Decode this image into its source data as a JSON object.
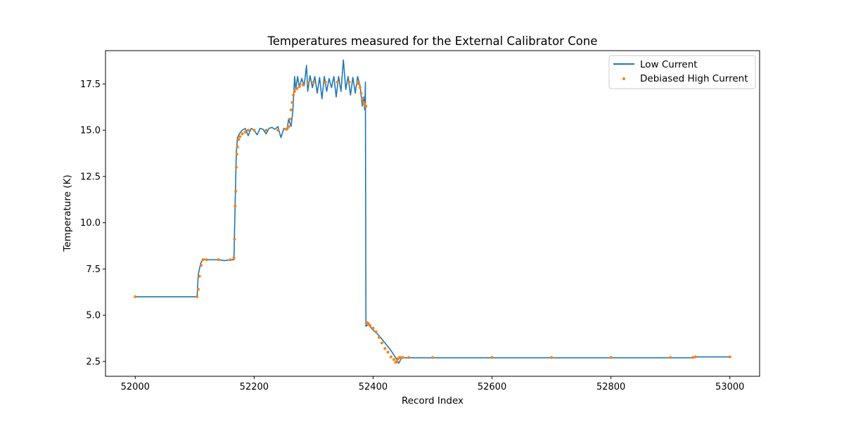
{
  "chart_data": {
    "type": "line",
    "title": "Temperatures measured for the External Calibrator Cone",
    "xlabel": "Record Index",
    "ylabel": "Temperature (K)",
    "xlim": [
      51950,
      53050
    ],
    "ylim": [
      1.7,
      19.3
    ],
    "x_ticks": [
      52000,
      52200,
      52400,
      52600,
      52800,
      53000
    ],
    "y_ticks": [
      2.5,
      5.0,
      7.5,
      10.0,
      12.5,
      15.0,
      17.5
    ],
    "x_tick_labels": [
      "52000",
      "52200",
      "52400",
      "52600",
      "52800",
      "53000"
    ],
    "y_tick_labels": [
      "2.5",
      "5.0",
      "7.5",
      "10.0",
      "12.5",
      "15.0",
      "17.5"
    ],
    "grid": false,
    "legend_position": "top-right",
    "colors": {
      "low_current": "#1f77b4",
      "high_current": "#ff7f0e"
    },
    "series": [
      {
        "name": "Low Current",
        "kind": "line",
        "x": [
          52000,
          52104,
          52106,
          52110,
          52114,
          52120,
          52130,
          52140,
          52150,
          52160,
          52166,
          52168,
          52170,
          52172,
          52175,
          52180,
          52185,
          52190,
          52195,
          52200,
          52205,
          52210,
          52215,
          52220,
          52225,
          52230,
          52235,
          52240,
          52245,
          52250,
          52255,
          52258,
          52262,
          52265,
          52268,
          52270,
          52273,
          52276,
          52280,
          52284,
          52288,
          52290,
          52294,
          52298,
          52302,
          52306,
          52310,
          52314,
          52318,
          52322,
          52326,
          52330,
          52334,
          52338,
          52342,
          52346,
          52350,
          52354,
          52358,
          52362,
          52366,
          52370,
          52374,
          52378,
          52382,
          52384,
          52386,
          52387,
          52388,
          52392,
          52396,
          52400,
          52410,
          52420,
          52430,
          52436,
          52440,
          52443,
          52448,
          52460,
          52500,
          52600,
          52700,
          52800,
          52900,
          52938,
          52942,
          53000
        ],
        "y": [
          6.0,
          6.0,
          7.2,
          7.8,
          8.05,
          8.0,
          8.0,
          8.0,
          7.95,
          8.0,
          8.0,
          11.0,
          13.8,
          14.6,
          14.8,
          15.0,
          15.1,
          14.7,
          15.1,
          15.0,
          14.75,
          15.1,
          15.05,
          14.8,
          15.1,
          15.15,
          15.05,
          15.2,
          14.6,
          15.1,
          15.0,
          15.6,
          15.2,
          16.0,
          17.9,
          17.2,
          17.9,
          17.3,
          17.8,
          17.4,
          18.5,
          17.1,
          17.95,
          17.3,
          17.9,
          17.0,
          17.85,
          16.7,
          17.9,
          17.1,
          17.8,
          17.3,
          17.9,
          16.8,
          17.9,
          17.1,
          18.8,
          17.2,
          17.9,
          16.9,
          17.85,
          17.0,
          17.9,
          17.4,
          16.3,
          16.8,
          16.1,
          17.6,
          4.4,
          4.5,
          4.35,
          4.2,
          3.9,
          3.5,
          3.1,
          2.8,
          2.6,
          2.4,
          2.7,
          2.7,
          2.7,
          2.7,
          2.7,
          2.7,
          2.7,
          2.7,
          2.75,
          2.75
        ]
      },
      {
        "name": "Debiased High Current",
        "kind": "scatter",
        "x": [
          52000,
          52104,
          52106,
          52108,
          52111,
          52114,
          52120,
          52140,
          52160,
          52166,
          52167,
          52168,
          52169,
          52170,
          52171,
          52172,
          52174,
          52176,
          52180,
          52185,
          52190,
          52200,
          52220,
          52240,
          52254,
          52256,
          52258,
          52260,
          52262,
          52264,
          52266,
          52268,
          52272,
          52276,
          52282,
          52290,
          52300,
          52320,
          52340,
          52360,
          52374,
          52376,
          52378,
          52380,
          52382,
          52384,
          52386,
          52388,
          52390,
          52392,
          52395,
          52400,
          52405,
          52410,
          52415,
          52420,
          52425,
          52430,
          52435,
          52438,
          52440,
          52442,
          52444,
          52446,
          52450,
          52460,
          52500,
          52600,
          52700,
          52800,
          52900,
          52938,
          52942,
          53000
        ],
        "y": [
          6.0,
          6.0,
          6.4,
          7.1,
          7.7,
          8.0,
          8.0,
          8.0,
          8.0,
          8.1,
          9.1,
          10.9,
          11.7,
          13.0,
          13.7,
          14.1,
          14.5,
          14.65,
          14.8,
          14.9,
          15.0,
          15.0,
          15.0,
          15.0,
          15.05,
          15.1,
          15.2,
          15.6,
          16.1,
          16.5,
          16.9,
          17.1,
          17.25,
          17.35,
          17.45,
          17.55,
          17.6,
          17.6,
          17.6,
          17.6,
          17.55,
          17.5,
          17.3,
          17.0,
          16.7,
          16.5,
          16.4,
          16.3,
          4.6,
          4.55,
          4.45,
          4.3,
          4.1,
          3.8,
          3.5,
          3.2,
          3.0,
          2.75,
          2.6,
          2.45,
          2.5,
          2.65,
          2.72,
          2.72,
          2.72,
          2.72,
          2.72,
          2.72,
          2.72,
          2.72,
          2.72,
          2.72,
          2.75,
          2.75
        ]
      }
    ]
  }
}
